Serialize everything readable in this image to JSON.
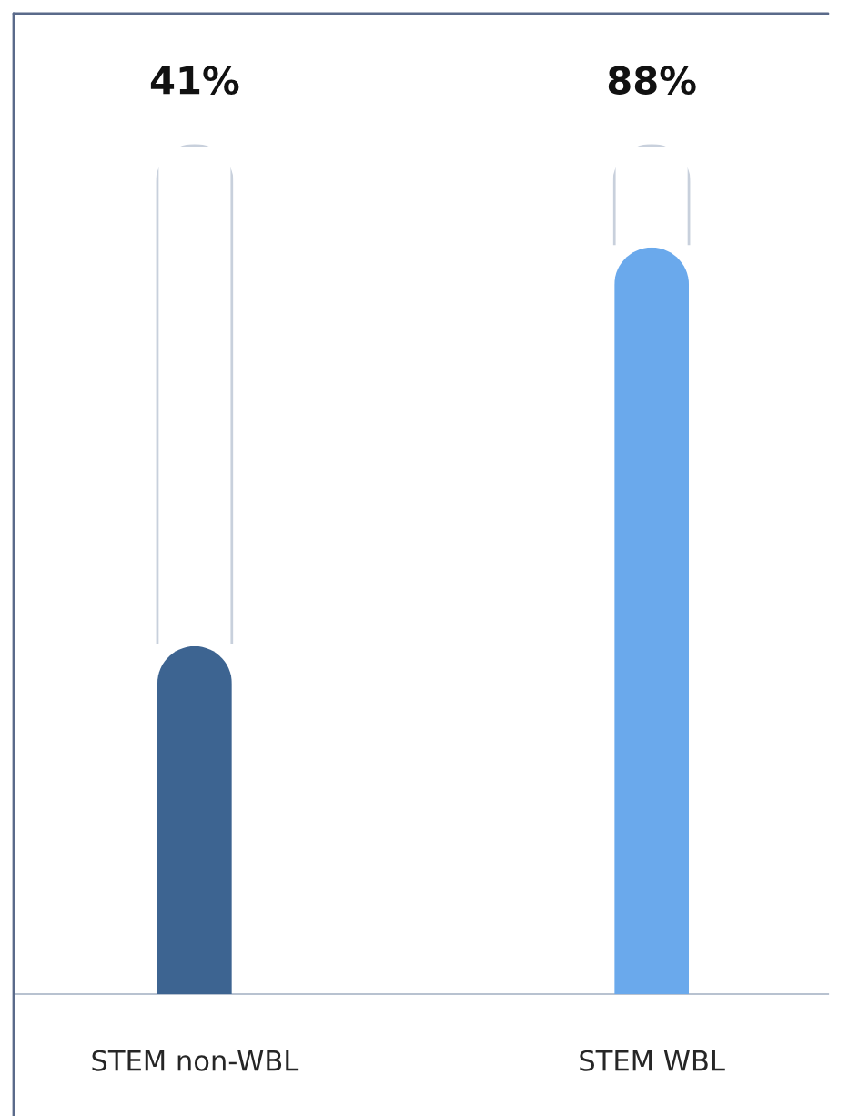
{
  "chart_data": {
    "type": "bar",
    "stacked": true,
    "categories": [
      "STEM non-WBL",
      "STEM WBL"
    ],
    "series": [
      {
        "colors": [
          "#3d6491",
          "#6aa9ec"
        ],
        "values": [
          41,
          88
        ],
        "value_labels": [
          "41%",
          "88%"
        ]
      },
      {
        "color": "#ffffff",
        "values": [
          59,
          12
        ]
      }
    ],
    "tick_labels": "x",
    "grid": false,
    "legend": false
  }
}
